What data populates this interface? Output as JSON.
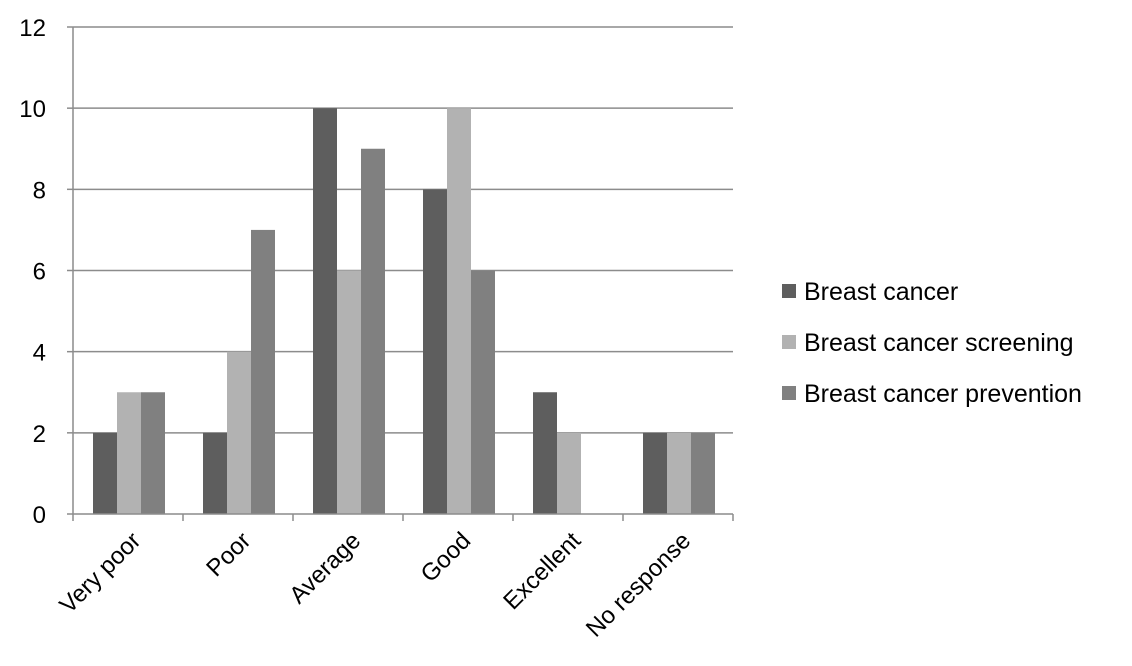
{
  "chart_data": {
    "type": "bar",
    "categories": [
      "Very poor",
      "Poor",
      "Average",
      "Good",
      "Excellent",
      "No response"
    ],
    "series": [
      {
        "name": "Breast cancer",
        "values": [
          2,
          2,
          10,
          8,
          3,
          2
        ],
        "color": "#5e5e5e"
      },
      {
        "name": "Breast cancer screening",
        "values": [
          3,
          4,
          6,
          10,
          2,
          2
        ],
        "color": "#b2b2b2"
      },
      {
        "name": "Breast cancer prevention",
        "values": [
          3,
          7,
          9,
          6,
          0,
          2
        ],
        "color": "#808080"
      }
    ],
    "title": "",
    "xlabel": "",
    "ylabel": "",
    "ylim": [
      0,
      12
    ],
    "yticks": [
      0,
      2,
      4,
      6,
      8,
      10,
      12
    ],
    "grid": true,
    "legend_position": "right"
  }
}
